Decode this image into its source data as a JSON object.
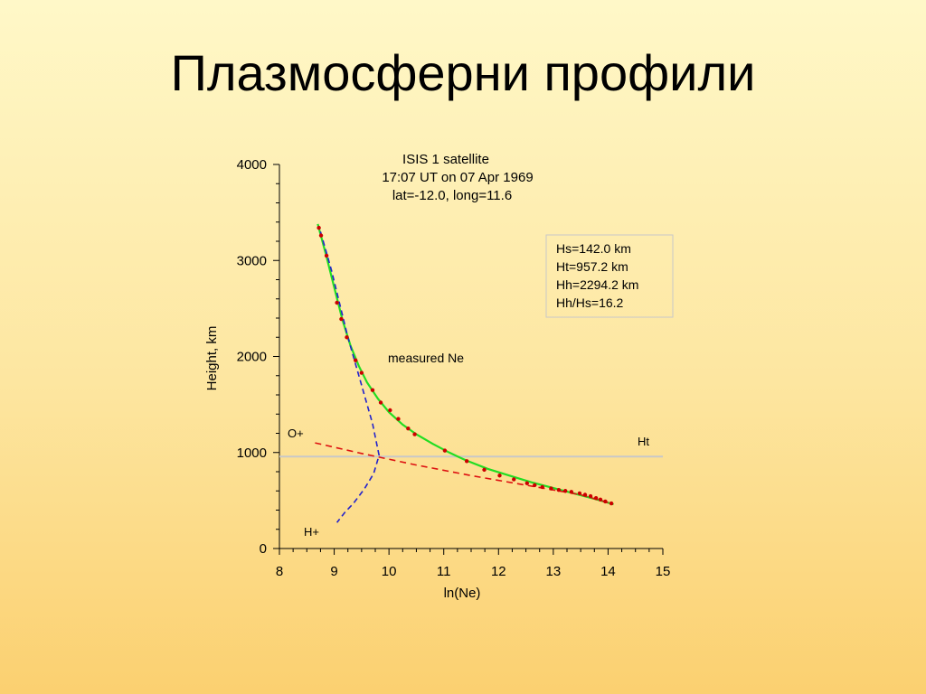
{
  "slide": {
    "title": "Плазмосферни профили"
  },
  "chart_data": {
    "type": "line",
    "title_lines": [
      "ISIS 1 satellite",
      "17:07 UT on 07 Apr 1969",
      "lat=-12.0, long=11.6"
    ],
    "xlabel": "ln(Ne)",
    "ylabel": "Height, km",
    "xlim": [
      8,
      15
    ],
    "ylim": [
      0,
      4000
    ],
    "xticks": [
      8,
      9,
      10,
      11,
      12,
      13,
      14,
      15
    ],
    "yticks": [
      0,
      1000,
      2000,
      3000,
      4000
    ],
    "grid": false,
    "info_box": [
      "Hs=142.0 km",
      "Ht=957.2 km",
      "Hh=2294.2 km",
      "Hh/Hs=16.2"
    ],
    "annotations": {
      "measured": "measured Ne",
      "oplus": "O+",
      "hplus": "H+",
      "ht": "Ht"
    },
    "colors": {
      "fit": "#22dd22",
      "measured_points": "#cc0000",
      "o_plus": "#dd1111",
      "h_plus": "#2222cc",
      "ht_line": "#c8c8c8",
      "axis": "#000000"
    },
    "series": [
      {
        "name": "measured Ne",
        "style": "points",
        "x": [
          8.72,
          8.76,
          8.86,
          9.05,
          9.13,
          9.23,
          9.39,
          9.5,
          9.7,
          9.85,
          10.02,
          10.17,
          10.35,
          10.47,
          11.02,
          11.42,
          11.74,
          12.02,
          12.28,
          12.52,
          12.66,
          12.8,
          12.96,
          13.1,
          13.22,
          13.33,
          13.48,
          13.58,
          13.68,
          13.78,
          13.86,
          13.95,
          14.06
        ],
        "y": [
          3340,
          3260,
          3050,
          2560,
          2390,
          2200,
          1960,
          1830,
          1650,
          1520,
          1440,
          1350,
          1250,
          1190,
          1020,
          910,
          820,
          760,
          720,
          680,
          660,
          640,
          625,
          610,
          600,
          590,
          575,
          560,
          545,
          525,
          510,
          490,
          470
        ]
      },
      {
        "name": "fit",
        "style": "line",
        "x": [
          8.7,
          8.85,
          9.0,
          9.15,
          9.3,
          9.45,
          9.6,
          9.8,
          10.0,
          10.25,
          10.5,
          10.8,
          11.1,
          11.4,
          11.8,
          12.2,
          12.6,
          13.0,
          13.4,
          13.8,
          14.1
        ],
        "y": [
          3380,
          3060,
          2720,
          2380,
          2110,
          1900,
          1730,
          1560,
          1420,
          1290,
          1190,
          1090,
          1000,
          920,
          830,
          760,
          690,
          630,
          570,
          510,
          460
        ]
      },
      {
        "name": "O+",
        "style": "dashed",
        "x": [
          8.65,
          9.5,
          10.5,
          11.5,
          12.5,
          13.5,
          14.05
        ],
        "y": [
          1100,
          990,
          870,
          760,
          660,
          560,
          470
        ]
      },
      {
        "name": "H+",
        "style": "dashed",
        "x": [
          8.75,
          8.95,
          9.1,
          9.25,
          9.4,
          9.55,
          9.7,
          9.82,
          9.72,
          9.55,
          9.35,
          9.2,
          9.05
        ],
        "y": [
          3300,
          2900,
          2550,
          2200,
          1900,
          1600,
          1300,
          970,
          780,
          620,
          470,
          380,
          270
        ]
      },
      {
        "name": "Ht",
        "style": "hline",
        "x": [
          8,
          15
        ],
        "y": [
          957.2,
          957.2
        ]
      }
    ]
  }
}
